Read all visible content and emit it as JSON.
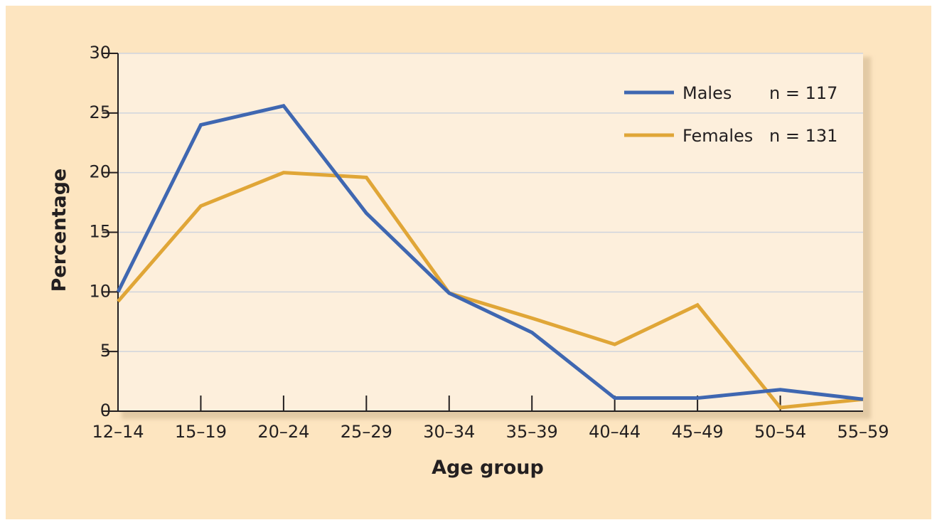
{
  "colors": {
    "background": "#fde5c0",
    "plot_area": "#fdefdc",
    "plot_shadow": "#e2c9a4",
    "gridline": "#cfd4dd",
    "axis": "#231f20",
    "males": "#3f67b1",
    "females": "#e0a637"
  },
  "chart_data": {
    "type": "line",
    "categories": [
      "12–14",
      "15–19",
      "20–24",
      "25–29",
      "30–34",
      "35–39",
      "40–44",
      "45–49",
      "50–54",
      "55–59"
    ],
    "series": [
      {
        "name": "Males",
        "n_label": "n = 117",
        "color": "#3f67b1",
        "values": [
          10.0,
          24.0,
          25.6,
          16.6,
          9.9,
          6.6,
          1.1,
          1.1,
          1.8,
          1.0
        ]
      },
      {
        "name": "Females",
        "n_label": "n = 131",
        "color": "#e0a637",
        "values": [
          9.2,
          17.2,
          20.0,
          19.6,
          9.9,
          7.8,
          5.6,
          8.9,
          0.3,
          1.0
        ]
      }
    ],
    "xlabel": "Age group",
    "ylabel": "Percentage",
    "ylim": [
      0,
      30
    ],
    "yticks": [
      "0",
      "5",
      "10",
      "15",
      "20",
      "25",
      "30"
    ],
    "grid": true,
    "legend_position": "top-right"
  }
}
